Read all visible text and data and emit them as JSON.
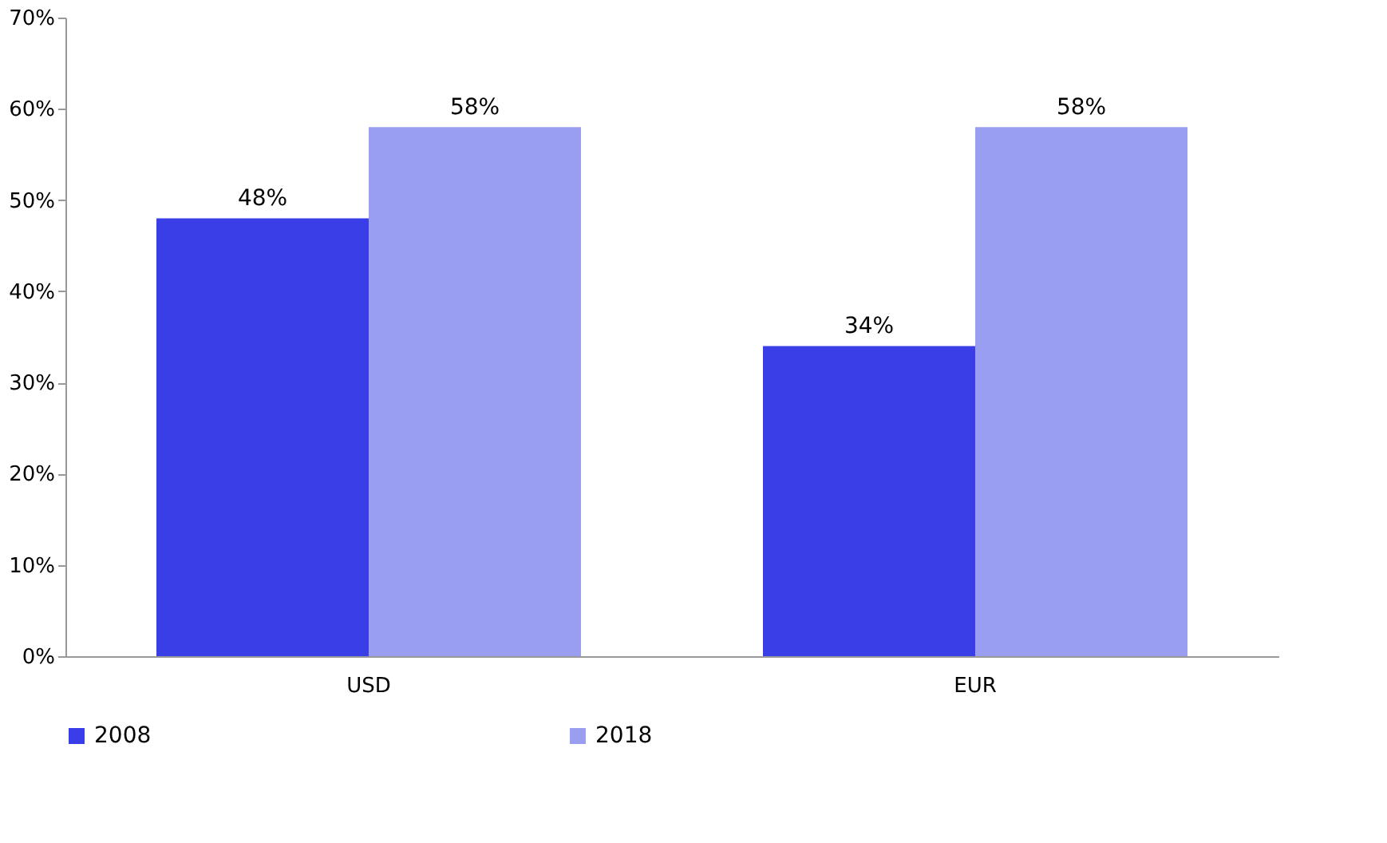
{
  "chart_data": {
    "type": "bar",
    "categories": [
      "USD",
      "EUR"
    ],
    "series": [
      {
        "name": "2008",
        "color": "#3a3ee6",
        "values": [
          48,
          34
        ],
        "value_labels": [
          "48%",
          "34%"
        ]
      },
      {
        "name": "2018",
        "color": "#9a9ef0",
        "values": [
          58,
          58
        ],
        "value_labels": [
          "58%",
          "58%"
        ]
      }
    ],
    "ylim": [
      0,
      70
    ],
    "yticks": [
      {
        "value": 0,
        "label": "0%"
      },
      {
        "value": 10,
        "label": "10%"
      },
      {
        "value": 20,
        "label": "20%"
      },
      {
        "value": 30,
        "label": "30%"
      },
      {
        "value": 40,
        "label": "40%"
      },
      {
        "value": 50,
        "label": "50%"
      },
      {
        "value": 60,
        "label": "60%"
      },
      {
        "value": 70,
        "label": "70%"
      }
    ],
    "grid": false,
    "legend": "bottom"
  }
}
